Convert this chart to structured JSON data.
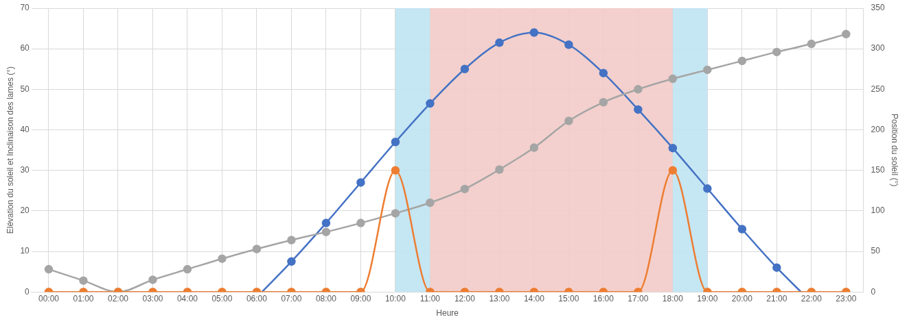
{
  "chart_data": {
    "type": "line",
    "xlabel": "Heure",
    "ylabel": "Elévation du soleil et Inclinaison des lames (°)",
    "y2label": "Position du soleil (°)",
    "xlim": [
      -0.5,
      23.5
    ],
    "xticks": [
      {
        "value": 0,
        "label": "00:00"
      },
      {
        "value": 1,
        "label": "01:00"
      },
      {
        "value": 2,
        "label": "02:00"
      },
      {
        "value": 3,
        "label": "03:00"
      },
      {
        "value": 4,
        "label": "04:00"
      },
      {
        "value": 5,
        "label": "05:00"
      },
      {
        "value": 6,
        "label": "06:00"
      },
      {
        "value": 7,
        "label": "07:00"
      },
      {
        "value": 8,
        "label": "08:00"
      },
      {
        "value": 9,
        "label": "09:00"
      },
      {
        "value": 10,
        "label": "10:00"
      },
      {
        "value": 11,
        "label": "11:00"
      },
      {
        "value": 12,
        "label": "12:00"
      },
      {
        "value": 13,
        "label": "13:00"
      },
      {
        "value": 14,
        "label": "14:00"
      },
      {
        "value": 15,
        "label": "15:00"
      },
      {
        "value": 16,
        "label": "16:00"
      },
      {
        "value": 17,
        "label": "17:00"
      },
      {
        "value": 18,
        "label": "18:00"
      },
      {
        "value": 19,
        "label": "19:00"
      },
      {
        "value": 20,
        "label": "20:00"
      },
      {
        "value": 21,
        "label": "21:00"
      },
      {
        "value": 22,
        "label": "22:00"
      },
      {
        "value": 23,
        "label": "23:00"
      }
    ],
    "ylim": [
      0,
      70
    ],
    "yticks": [
      0,
      10,
      20,
      30,
      40,
      50,
      60,
      70
    ],
    "y2lim": [
      0,
      350
    ],
    "y2ticks": [
      0,
      50,
      100,
      150,
      200,
      250,
      300,
      350
    ],
    "grid": true,
    "legend": false,
    "marker": "circle",
    "bands": [
      {
        "axis": "x",
        "from": 10,
        "to": 11,
        "color": "#bfe3f2"
      },
      {
        "axis": "x",
        "from": 11,
        "to": 18,
        "color": "#f2cbc8"
      },
      {
        "axis": "x",
        "from": 18,
        "to": 19,
        "color": "#bfe3f2"
      }
    ],
    "series": [
      {
        "color": "#4472c4",
        "x": [
          6.15,
          7,
          8,
          9,
          10,
          11,
          12,
          13,
          14,
          15,
          16,
          17,
          18,
          19,
          20,
          21,
          21.7
        ],
        "values": [
          0,
          7.5,
          17,
          27,
          37,
          46.5,
          55,
          61.5,
          64,
          61,
          54,
          45,
          35.5,
          25.5,
          15.5,
          6,
          0
        ]
      },
      {
        "color": "#a5a5a5",
        "axis": "y2",
        "x": [
          0,
          1,
          2,
          3,
          4,
          5,
          6,
          7,
          8,
          9,
          10,
          11,
          12,
          13,
          14,
          15,
          16,
          17,
          18,
          19,
          20,
          21,
          22,
          23
        ],
        "values": [
          28,
          14,
          0,
          15,
          28,
          41,
          53,
          64,
          74,
          85,
          97,
          110,
          127,
          151,
          178,
          211,
          234,
          250,
          263,
          274,
          285,
          296,
          306,
          318
        ]
      },
      {
        "color": "#ed7d31",
        "x": [
          0,
          1,
          2,
          3,
          4,
          5,
          6,
          7,
          8,
          9,
          10,
          11,
          12,
          13,
          14,
          15,
          16,
          17,
          18,
          19,
          20,
          21,
          22,
          23
        ],
        "values": [
          0,
          0,
          0,
          0,
          0,
          0,
          0,
          0,
          0,
          0,
          30,
          0,
          0,
          0,
          0,
          0,
          0,
          0,
          30,
          0,
          0,
          0,
          0,
          0
        ]
      }
    ]
  }
}
